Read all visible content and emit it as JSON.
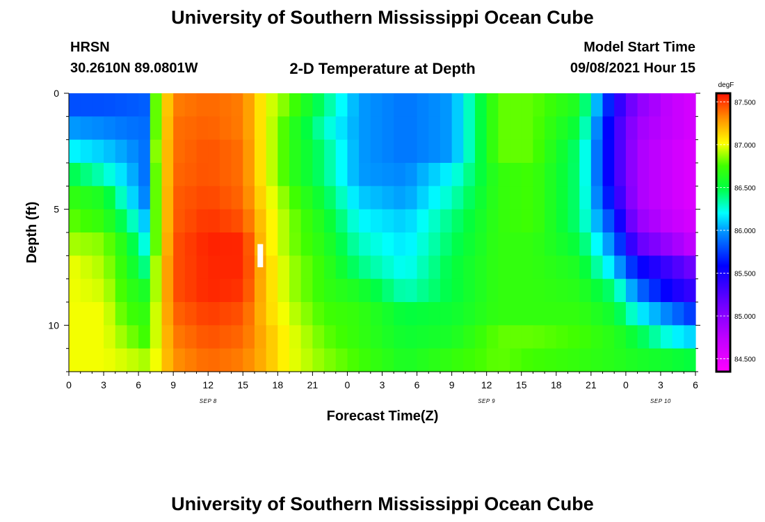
{
  "header": {
    "title": "University of Southern Mississippi Ocean Cube",
    "station": "HRSN",
    "coords": "30.2610N  89.0801W",
    "plot_title": "2-D Temperature at Depth",
    "model_start_label": "Model Start Time",
    "model_start_value": "09/08/2021 Hour 15"
  },
  "footer": {
    "title": "University of Southern Mississippi Ocean Cube"
  },
  "chart_data": {
    "type": "heatmap",
    "title": "2-D Temperature at Depth",
    "xlabel": "Forecast Time(Z)",
    "ylabel": "Depth (ft)",
    "x_hours_range": [
      0,
      54
    ],
    "x_tick_hours": [
      0,
      3,
      6,
      9,
      12,
      15,
      18,
      21,
      24,
      27,
      30,
      33,
      36,
      39,
      42,
      45,
      48,
      51,
      54
    ],
    "x_tick_labels": [
      "0",
      "3",
      "6",
      "9",
      "12",
      "15",
      "18",
      "21",
      "0",
      "3",
      "6",
      "9",
      "12",
      "15",
      "18",
      "21",
      "0",
      "3",
      "6"
    ],
    "date_labels": [
      {
        "text": "SEP 8",
        "hour": 12
      },
      {
        "text": "SEP 9",
        "hour": 36
      },
      {
        "text": "SEP 10",
        "hour": 51
      }
    ],
    "y_range": [
      0,
      12
    ],
    "y_major_ticks": [
      0,
      5,
      10
    ],
    "y_tick_labels": [
      "0",
      "5",
      "10"
    ],
    "colorbar": {
      "unit": "degF",
      "range": [
        84.35,
        87.6
      ],
      "ticks": [
        87.5,
        87.0,
        86.5,
        86.0,
        85.5,
        85.0,
        84.5
      ],
      "tick_labels": [
        "87.500",
        "87.000",
        "86.500",
        "86.000",
        "85.500",
        "85.000",
        "84.500"
      ]
    },
    "marker": {
      "hour": 16.5,
      "depth_range": [
        6.5,
        7.5
      ]
    },
    "depths_ft": [
      0.5,
      1.5,
      2.5,
      3.5,
      4.5,
      5.5,
      6.5,
      7.5,
      8.5,
      9.5,
      10.5,
      11.5
    ],
    "time_keypoints_hours": [
      0,
      3,
      5,
      6.5,
      7.5,
      9,
      12,
      15,
      17,
      19,
      22,
      25,
      29,
      33,
      37,
      40,
      44,
      47,
      49,
      52,
      54
    ],
    "temperature_degF_by_depth_row": [
      [
        85.8,
        85.8,
        85.82,
        85.84,
        86.8,
        87.35,
        87.4,
        87.35,
        87.0,
        86.8,
        86.4,
        86.0,
        85.9,
        86.0,
        86.8,
        86.8,
        86.6,
        85.5,
        85.0,
        84.7,
        84.6
      ],
      [
        86.0,
        85.95,
        85.9,
        85.88,
        86.8,
        87.38,
        87.42,
        87.35,
        87.0,
        86.7,
        86.3,
        86.0,
        85.9,
        86.0,
        86.8,
        86.8,
        86.5,
        85.4,
        84.9,
        84.7,
        84.6
      ],
      [
        86.2,
        86.1,
        86.0,
        85.9,
        86.85,
        87.38,
        87.45,
        87.38,
        87.0,
        86.7,
        86.4,
        86.0,
        85.9,
        86.0,
        86.8,
        86.8,
        86.4,
        85.4,
        84.85,
        84.65,
        84.55
      ],
      [
        86.5,
        86.3,
        86.1,
        85.9,
        86.8,
        87.4,
        87.45,
        87.38,
        87.0,
        86.7,
        86.4,
        86.0,
        85.95,
        86.2,
        86.7,
        86.75,
        86.4,
        85.4,
        84.85,
        84.65,
        84.55
      ],
      [
        86.7,
        86.6,
        86.2,
        85.95,
        86.8,
        87.42,
        87.48,
        87.4,
        87.05,
        86.8,
        86.5,
        86.1,
        86.0,
        86.3,
        86.7,
        86.75,
        86.4,
        85.5,
        84.85,
        84.65,
        84.55
      ],
      [
        86.8,
        86.7,
        86.4,
        86.1,
        86.8,
        87.42,
        87.52,
        87.45,
        87.1,
        86.85,
        86.6,
        86.2,
        86.1,
        86.4,
        86.7,
        86.75,
        86.4,
        85.7,
        84.95,
        84.7,
        84.6
      ],
      [
        86.9,
        86.85,
        86.6,
        86.25,
        86.8,
        87.45,
        87.56,
        87.55,
        87.1,
        86.85,
        86.65,
        86.3,
        86.15,
        86.45,
        86.7,
        86.7,
        86.5,
        85.9,
        85.2,
        84.9,
        84.7
      ],
      [
        87.0,
        86.9,
        86.65,
        86.4,
        86.9,
        87.45,
        87.55,
        87.55,
        87.15,
        86.9,
        86.7,
        86.4,
        86.2,
        86.5,
        86.7,
        86.7,
        86.6,
        86.1,
        85.6,
        85.3,
        85.1
      ],
      [
        87.0,
        86.95,
        86.7,
        86.6,
        86.9,
        87.45,
        87.55,
        87.52,
        87.15,
        86.9,
        86.7,
        86.6,
        86.3,
        86.5,
        86.7,
        86.7,
        86.65,
        86.4,
        85.9,
        85.5,
        85.35
      ],
      [
        87.0,
        87.0,
        86.75,
        86.7,
        86.95,
        87.4,
        87.5,
        87.45,
        87.15,
        86.95,
        86.75,
        86.7,
        86.5,
        86.55,
        86.7,
        86.7,
        86.7,
        86.55,
        86.2,
        85.9,
        85.7
      ],
      [
        87.0,
        87.0,
        86.85,
        86.75,
        86.95,
        87.35,
        87.45,
        87.4,
        87.2,
        87.0,
        86.8,
        86.7,
        86.55,
        86.6,
        86.8,
        86.8,
        86.75,
        86.65,
        86.5,
        86.2,
        86.1
      ],
      [
        87.0,
        87.0,
        86.95,
        86.9,
        87.0,
        87.3,
        87.4,
        87.35,
        87.2,
        87.0,
        86.85,
        86.75,
        86.6,
        86.7,
        86.8,
        86.75,
        86.7,
        86.65,
        86.6,
        86.55,
        86.5
      ]
    ]
  }
}
